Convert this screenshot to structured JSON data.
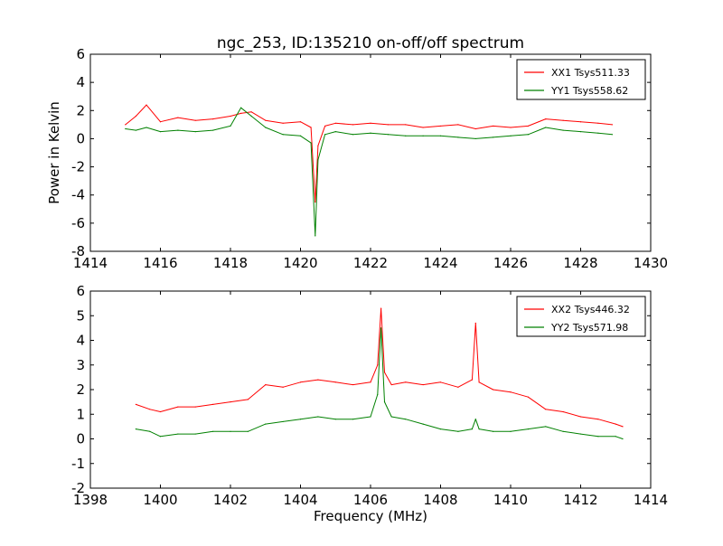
{
  "figure": {
    "title": "ngc_253, ID:135210 on-off/off spectrum"
  },
  "chart_data": [
    {
      "type": "line",
      "title": "ngc_253, ID:135210 on-off/off spectrum",
      "xlabel": "",
      "ylabel": "Power in Kelvin",
      "xlim": [
        1414,
        1430
      ],
      "ylim": [
        -8,
        6
      ],
      "xticks": [
        1414,
        1416,
        1418,
        1420,
        1422,
        1424,
        1426,
        1428,
        1430
      ],
      "yticks": [
        -8,
        -6,
        -4,
        -2,
        0,
        2,
        4,
        6
      ],
      "legend": "top-right",
      "grid": false,
      "series": [
        {
          "name": "XX1 Tsys511.33",
          "color": "#ff0000",
          "x": [
            1415.0,
            1415.3,
            1415.6,
            1416.0,
            1416.5,
            1417.0,
            1417.5,
            1418.0,
            1418.3,
            1418.6,
            1419.0,
            1419.5,
            1420.0,
            1420.3,
            1420.42,
            1420.5,
            1420.7,
            1421.0,
            1421.5,
            1422.0,
            1422.5,
            1423.0,
            1423.5,
            1424.0,
            1424.5,
            1425.0,
            1425.5,
            1426.0,
            1426.5,
            1427.0,
            1427.5,
            1428.0,
            1428.5,
            1428.9
          ],
          "y": [
            1.0,
            1.6,
            2.4,
            1.2,
            1.5,
            1.3,
            1.4,
            1.6,
            1.8,
            1.9,
            1.3,
            1.1,
            1.2,
            0.8,
            -4.5,
            -0.5,
            0.9,
            1.1,
            1.0,
            1.1,
            1.0,
            1.0,
            0.8,
            0.9,
            1.0,
            0.7,
            0.9,
            0.8,
            0.9,
            1.4,
            1.3,
            1.2,
            1.1,
            1.0
          ]
        },
        {
          "name": "YY1 Tsys558.62",
          "color": "#008000",
          "x": [
            1415.0,
            1415.3,
            1415.6,
            1416.0,
            1416.5,
            1417.0,
            1417.5,
            1418.0,
            1418.3,
            1418.6,
            1419.0,
            1419.5,
            1420.0,
            1420.3,
            1420.42,
            1420.5,
            1420.7,
            1421.0,
            1421.5,
            1422.0,
            1422.5,
            1423.0,
            1423.5,
            1424.0,
            1424.5,
            1425.0,
            1425.5,
            1426.0,
            1426.5,
            1427.0,
            1427.5,
            1428.0,
            1428.5,
            1428.9
          ],
          "y": [
            0.7,
            0.6,
            0.8,
            0.5,
            0.6,
            0.5,
            0.6,
            0.9,
            2.2,
            1.6,
            0.8,
            0.3,
            0.2,
            -0.3,
            -6.9,
            -1.5,
            0.3,
            0.5,
            0.3,
            0.4,
            0.3,
            0.2,
            0.2,
            0.2,
            0.1,
            0.0,
            0.1,
            0.2,
            0.3,
            0.8,
            0.6,
            0.5,
            0.4,
            0.3
          ]
        }
      ]
    },
    {
      "type": "line",
      "title": "",
      "xlabel": "Frequency (MHz)",
      "ylabel": "",
      "xlim": [
        1398,
        1414
      ],
      "ylim": [
        -2,
        6
      ],
      "xticks": [
        1398,
        1400,
        1402,
        1404,
        1406,
        1408,
        1410,
        1412,
        1414
      ],
      "yticks": [
        -2,
        -1,
        0,
        1,
        2,
        3,
        4,
        5,
        6
      ],
      "legend": "top-right",
      "grid": false,
      "series": [
        {
          "name": "XX2 Tsys446.32",
          "color": "#ff0000",
          "x": [
            1399.3,
            1399.7,
            1400.0,
            1400.5,
            1401.0,
            1401.5,
            1402.0,
            1402.5,
            1403.0,
            1403.5,
            1404.0,
            1404.5,
            1405.0,
            1405.5,
            1406.0,
            1406.2,
            1406.3,
            1406.4,
            1406.6,
            1407.0,
            1407.5,
            1408.0,
            1408.5,
            1408.9,
            1409.0,
            1409.1,
            1409.5,
            1410.0,
            1410.5,
            1411.0,
            1411.5,
            1412.0,
            1412.5,
            1413.0,
            1413.2
          ],
          "y": [
            1.4,
            1.2,
            1.1,
            1.3,
            1.3,
            1.4,
            1.5,
            1.6,
            2.2,
            2.1,
            2.3,
            2.4,
            2.3,
            2.2,
            2.3,
            3.0,
            5.3,
            2.7,
            2.2,
            2.3,
            2.2,
            2.3,
            2.1,
            2.4,
            4.7,
            2.3,
            2.0,
            1.9,
            1.7,
            1.2,
            1.1,
            0.9,
            0.8,
            0.6,
            0.5
          ]
        },
        {
          "name": "YY2 Tsys571.98",
          "color": "#008000",
          "x": [
            1399.3,
            1399.7,
            1400.0,
            1400.5,
            1401.0,
            1401.5,
            1402.0,
            1402.5,
            1403.0,
            1403.5,
            1404.0,
            1404.5,
            1405.0,
            1405.5,
            1406.0,
            1406.2,
            1406.3,
            1406.4,
            1406.6,
            1407.0,
            1407.5,
            1408.0,
            1408.5,
            1408.9,
            1409.0,
            1409.1,
            1409.5,
            1410.0,
            1410.5,
            1411.0,
            1411.5,
            1412.0,
            1412.5,
            1413.0,
            1413.2
          ],
          "y": [
            0.4,
            0.3,
            0.1,
            0.2,
            0.2,
            0.3,
            0.3,
            0.3,
            0.6,
            0.7,
            0.8,
            0.9,
            0.8,
            0.8,
            0.9,
            1.8,
            4.5,
            1.5,
            0.9,
            0.8,
            0.6,
            0.4,
            0.3,
            0.4,
            0.8,
            0.4,
            0.3,
            0.3,
            0.4,
            0.5,
            0.3,
            0.2,
            0.1,
            0.1,
            0.0
          ]
        }
      ]
    }
  ]
}
